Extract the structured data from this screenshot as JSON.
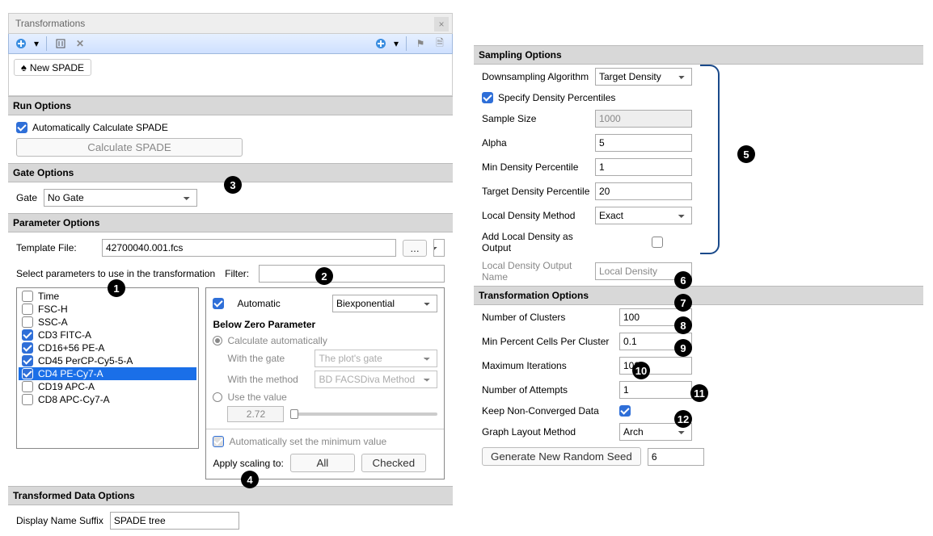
{
  "window": {
    "title": "Transformations"
  },
  "tree": {
    "item": "New SPADE"
  },
  "run_options": {
    "header": "Run Options",
    "auto_label": "Automatically Calculate SPADE",
    "auto_checked": true,
    "calc_button": "Calculate SPADE"
  },
  "gate_options": {
    "header": "Gate Options",
    "label": "Gate",
    "value": "No Gate"
  },
  "parameter_options": {
    "header": "Parameter Options",
    "template_label": "Template File:",
    "template_value": "42700040.001.fcs",
    "browse": "...",
    "select_label": "Select parameters to use in the transformation",
    "filter_label": "Filter:",
    "filter_value": "",
    "params": [
      {
        "name": "Time",
        "checked": false
      },
      {
        "name": "FSC-H",
        "checked": false
      },
      {
        "name": "SSC-A",
        "checked": false
      },
      {
        "name": "CD3 FITC-A",
        "checked": true
      },
      {
        "name": "CD16+56 PE-A",
        "checked": true
      },
      {
        "name": "CD45 PerCP-Cy5-5-A",
        "checked": true
      },
      {
        "name": "CD4 PE-Cy7-A",
        "checked": true,
        "selected": true
      },
      {
        "name": "CD19 APC-A",
        "checked": false
      },
      {
        "name": "CD8 APC-Cy7-A",
        "checked": false
      }
    ],
    "auto_label": "Automatic",
    "method": "Biexponential",
    "below_zero_header": "Below Zero Parameter",
    "calc_auto_label": "Calculate automatically",
    "with_gate_label": "With the gate",
    "with_gate_value": "The plot's gate",
    "with_method_label": "With the method",
    "with_method_value": "BD FACSDiva Method",
    "use_value_label": "Use the value",
    "use_value": "2.72",
    "autoset_min_label": "Automatically set the minimum value",
    "apply_label": "Apply scaling to:",
    "apply_all": "All",
    "apply_checked": "Checked"
  },
  "transformed_data": {
    "header": "Transformed Data Options",
    "suffix_label": "Display Name Suffix",
    "suffix_value": "SPADE tree"
  },
  "sampling": {
    "header": "Sampling Options",
    "algo_label": "Downsampling Algorithm",
    "algo_value": "Target Density",
    "specify_label": "Specify Density Percentiles",
    "sample_size_label": "Sample Size",
    "sample_size_value": "1000",
    "alpha_label": "Alpha",
    "alpha_value": "5",
    "min_pct_label": "Min Density Percentile",
    "min_pct_value": "1",
    "target_pct_label": "Target Density Percentile",
    "target_pct_value": "20",
    "ldm_label": "Local Density Method",
    "ldm_value": "Exact",
    "add_output_label": "Add Local Density as Output",
    "output_name_label": "Local Density Output Name",
    "output_name_value": "Local Density"
  },
  "transform": {
    "header": "Transformation Options",
    "clusters_label": "Number of Clusters",
    "clusters_value": "100",
    "minpct_label": "Min Percent Cells Per Cluster",
    "minpct_value": "0.1",
    "maxiter_label": "Maximum Iterations",
    "maxiter_value": "100",
    "attempts_label": "Number of Attempts",
    "attempts_value": "1",
    "keep_label": "Keep Non-Converged Data",
    "layout_label": "Graph Layout Method",
    "layout_value": "Arch",
    "seed_button": "Generate New Random Seed",
    "seed_value": "6"
  },
  "callouts": {
    "1": "1",
    "2": "2",
    "3": "3",
    "4": "4",
    "5": "5",
    "6": "6",
    "7": "7",
    "8": "8",
    "9": "9",
    "10": "10",
    "11": "11",
    "12": "12"
  }
}
